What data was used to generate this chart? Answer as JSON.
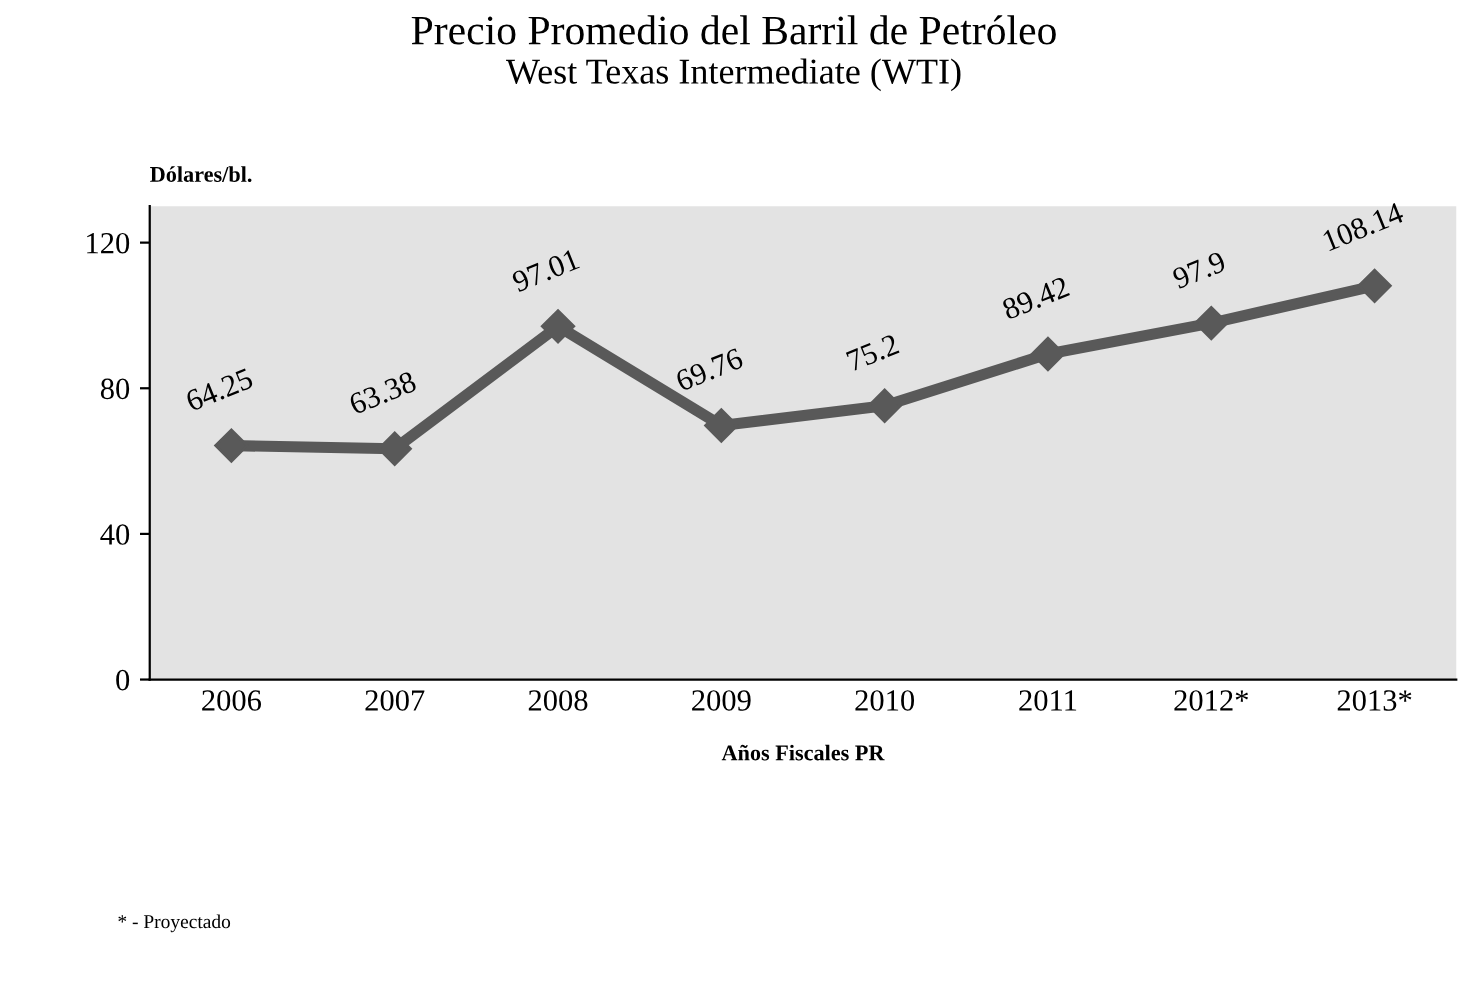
{
  "chart_data": {
    "type": "line",
    "title": "Precio Promedio del Barril de Petróleo",
    "subtitle": "West Texas Intermediate (WTI)",
    "ylabel": "Dólares/bl.",
    "xlabel": "Años Fiscales PR",
    "categories": [
      "2006",
      "2007",
      "2008",
      "2009",
      "2010",
      "2011",
      "2012*",
      "2013*"
    ],
    "series": [
      {
        "color": "#595959",
        "values": [
          64.25,
          63.38,
          97.01,
          69.76,
          75.2,
          89.42,
          97.9,
          108.14
        ]
      }
    ],
    "ylim": [
      0,
      130
    ],
    "yticks": [
      0,
      40,
      80,
      120
    ],
    "grid": false,
    "legend": false,
    "marker": "diamond",
    "line_style": "solid",
    "data_labels": true,
    "annotations": [
      "* - Proyectado"
    ]
  }
}
